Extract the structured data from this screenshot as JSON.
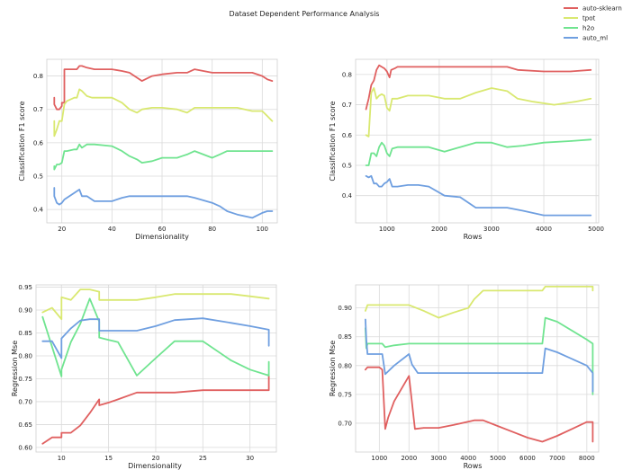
{
  "figure_title": "Dataset Dependent Performance Analysis",
  "legend": {
    "placement": "top-right",
    "entries": [
      {
        "name": "auto-sklearn",
        "color": "#e06060"
      },
      {
        "name": "tpot",
        "color": "#d9e870"
      },
      {
        "name": "h2o",
        "color": "#70e490"
      },
      {
        "name": "auto_ml",
        "color": "#6f9fe0"
      }
    ]
  },
  "chart_data": [
    {
      "type": "line",
      "xlabel": "Dimensionality",
      "ylabel": "Classification F1 score",
      "xlim": [
        14,
        106
      ],
      "ylim": [
        0.36,
        0.85
      ],
      "xticks": [
        20,
        40,
        60,
        80,
        100
      ],
      "yticks": [
        0.4,
        0.5,
        0.6,
        0.7,
        0.8
      ],
      "ytick_labels": [
        "0.4",
        "0.5",
        "0.6",
        "0.7",
        "0.8"
      ],
      "grid": true,
      "series": [
        {
          "name": "auto-sklearn",
          "color": "#e06060",
          "x": [
            17,
            17,
            18,
            19,
            20,
            20,
            21,
            21,
            26,
            27,
            28,
            30,
            33,
            40,
            44,
            47,
            52,
            56,
            60,
            66,
            68,
            70,
            73,
            80,
            83,
            86,
            90,
            96,
            100,
            102,
            104
          ],
          "y": [
            0.735,
            0.715,
            0.7,
            0.7,
            0.71,
            0.72,
            0.72,
            0.82,
            0.82,
            0.83,
            0.83,
            0.825,
            0.82,
            0.82,
            0.815,
            0.81,
            0.785,
            0.8,
            0.805,
            0.81,
            0.81,
            0.81,
            0.82,
            0.81,
            0.81,
            0.81,
            0.81,
            0.81,
            0.8,
            0.79,
            0.785
          ]
        },
        {
          "name": "tpot",
          "color": "#d9e870",
          "x": [
            17,
            17,
            18,
            19,
            20,
            21,
            22,
            25,
            26,
            27,
            28,
            30,
            32,
            40,
            44,
            47,
            50,
            52,
            56,
            60,
            66,
            68,
            70,
            73,
            80,
            83,
            86,
            90,
            96,
            100,
            102,
            104
          ],
          "y": [
            0.665,
            0.62,
            0.64,
            0.665,
            0.665,
            0.715,
            0.725,
            0.735,
            0.735,
            0.76,
            0.755,
            0.74,
            0.735,
            0.735,
            0.72,
            0.7,
            0.69,
            0.7,
            0.705,
            0.705,
            0.7,
            0.695,
            0.69,
            0.705,
            0.705,
            0.705,
            0.705,
            0.705,
            0.695,
            0.695,
            0.68,
            0.665
          ]
        },
        {
          "name": "h2o",
          "color": "#70e490",
          "x": [
            17,
            17,
            18,
            19,
            20,
            21,
            22,
            25,
            26,
            27,
            28,
            30,
            33,
            40,
            44,
            47,
            50,
            52,
            56,
            60,
            66,
            68,
            70,
            73,
            80,
            83,
            86,
            90,
            96,
            100,
            102,
            104
          ],
          "y": [
            0.53,
            0.52,
            0.535,
            0.535,
            0.54,
            0.575,
            0.575,
            0.58,
            0.58,
            0.595,
            0.585,
            0.595,
            0.595,
            0.59,
            0.575,
            0.56,
            0.55,
            0.54,
            0.545,
            0.555,
            0.555,
            0.56,
            0.565,
            0.575,
            0.555,
            0.565,
            0.575,
            0.575,
            0.575,
            0.575,
            0.575,
            0.575
          ]
        },
        {
          "name": "auto_ml",
          "color": "#6f9fe0",
          "x": [
            17,
            17,
            18,
            19,
            20,
            21,
            22,
            25,
            26,
            27,
            28,
            30,
            33,
            40,
            44,
            47,
            52,
            56,
            60,
            66,
            68,
            70,
            73,
            80,
            83,
            86,
            90,
            96,
            100,
            102,
            104
          ],
          "y": [
            0.465,
            0.44,
            0.42,
            0.415,
            0.42,
            0.43,
            0.435,
            0.45,
            0.455,
            0.46,
            0.44,
            0.44,
            0.425,
            0.425,
            0.435,
            0.44,
            0.44,
            0.44,
            0.44,
            0.44,
            0.44,
            0.44,
            0.435,
            0.42,
            0.41,
            0.395,
            0.385,
            0.375,
            0.39,
            0.395,
            0.395
          ]
        }
      ]
    },
    {
      "type": "line",
      "xlabel": "Rows",
      "ylabel": "Classification F1 score",
      "xlim": [
        400,
        5050
      ],
      "ylim": [
        0.31,
        0.85
      ],
      "xticks": [
        1000,
        2000,
        3000,
        4000,
        5000
      ],
      "yticks": [
        0.3,
        0.4,
        0.5,
        0.6,
        0.7,
        0.8
      ],
      "ytick_labels": [
        "0.3",
        "0.4",
        "0.5",
        "0.6",
        "0.7",
        "0.8"
      ],
      "grid": true,
      "series": [
        {
          "name": "auto-sklearn",
          "color": "#e06060",
          "x": [
            600,
            620,
            650,
            700,
            750,
            800,
            850,
            900,
            950,
            1000,
            1050,
            1080,
            1150,
            1200,
            1500,
            2000,
            2500,
            3000,
            3300,
            3500,
            4000,
            4200,
            4500,
            4900
          ],
          "y": [
            0.685,
            0.7,
            0.72,
            0.765,
            0.78,
            0.815,
            0.83,
            0.825,
            0.82,
            0.81,
            0.79,
            0.815,
            0.82,
            0.825,
            0.825,
            0.825,
            0.825,
            0.825,
            0.825,
            0.815,
            0.81,
            0.81,
            0.81,
            0.815
          ]
        },
        {
          "name": "tpot",
          "color": "#d9e870",
          "x": [
            600,
            650,
            700,
            750,
            800,
            850,
            900,
            950,
            1000,
            1050,
            1100,
            1200,
            1400,
            1600,
            1800,
            2100,
            2400,
            2700,
            3000,
            3300,
            3500,
            3800,
            4200,
            4600,
            4900
          ],
          "y": [
            0.6,
            0.595,
            0.74,
            0.755,
            0.72,
            0.73,
            0.735,
            0.73,
            0.69,
            0.68,
            0.72,
            0.72,
            0.73,
            0.73,
            0.73,
            0.72,
            0.72,
            0.74,
            0.755,
            0.745,
            0.72,
            0.71,
            0.7,
            0.71,
            0.72
          ]
        },
        {
          "name": "h2o",
          "color": "#70e490",
          "x": [
            600,
            650,
            700,
            750,
            800,
            850,
            900,
            950,
            1000,
            1050,
            1100,
            1200,
            1400,
            1600,
            1800,
            2100,
            2400,
            2700,
            3000,
            3300,
            3600,
            4000,
            4500,
            4900
          ],
          "y": [
            0.5,
            0.5,
            0.54,
            0.54,
            0.53,
            0.56,
            0.575,
            0.565,
            0.54,
            0.53,
            0.555,
            0.56,
            0.56,
            0.56,
            0.56,
            0.545,
            0.56,
            0.575,
            0.575,
            0.56,
            0.565,
            0.575,
            0.58,
            0.585
          ]
        },
        {
          "name": "auto_ml",
          "color": "#6f9fe0",
          "x": [
            600,
            650,
            700,
            750,
            800,
            850,
            900,
            950,
            1000,
            1050,
            1100,
            1200,
            1400,
            1600,
            1800,
            2100,
            2400,
            2700,
            3000,
            3300,
            3600,
            4000,
            4500,
            4900
          ],
          "y": [
            0.465,
            0.46,
            0.465,
            0.44,
            0.44,
            0.43,
            0.43,
            0.44,
            0.445,
            0.455,
            0.43,
            0.43,
            0.435,
            0.435,
            0.43,
            0.4,
            0.395,
            0.36,
            0.36,
            0.36,
            0.35,
            0.335,
            0.335,
            0.335
          ]
        }
      ]
    },
    {
      "type": "line",
      "xlabel": "Dimensionality",
      "ylabel": "Regression Mse",
      "xlim": [
        7.3,
        32.8
      ],
      "ylim": [
        0.59,
        0.955
      ],
      "xticks": [
        10,
        15,
        20,
        25,
        30
      ],
      "yticks": [
        0.6,
        0.65,
        0.7,
        0.75,
        0.8,
        0.85,
        0.9,
        0.95
      ],
      "ytick_labels": [
        "0.60",
        "0.65",
        "0.70",
        "0.75",
        "0.80",
        "0.85",
        "0.90",
        "0.95"
      ],
      "grid": true,
      "series": [
        {
          "name": "auto-sklearn",
          "color": "#e06060",
          "x": [
            8,
            9,
            10,
            10,
            11,
            12,
            13,
            14,
            14,
            15,
            16,
            18,
            20,
            22,
            25,
            28,
            30,
            32,
            32
          ],
          "y": [
            0.608,
            0.622,
            0.622,
            0.632,
            0.632,
            0.648,
            0.675,
            0.705,
            0.692,
            0.698,
            0.705,
            0.72,
            0.72,
            0.72,
            0.725,
            0.725,
            0.725,
            0.725,
            0.76
          ]
        },
        {
          "name": "tpot",
          "color": "#d9e870",
          "x": [
            8,
            9,
            10,
            10,
            11,
            12,
            13,
            14,
            14,
            15,
            16,
            18,
            20,
            22,
            25,
            28,
            30,
            32,
            32
          ],
          "y": [
            0.895,
            0.905,
            0.88,
            0.928,
            0.922,
            0.945,
            0.945,
            0.94,
            0.922,
            0.922,
            0.922,
            0.922,
            0.928,
            0.935,
            0.935,
            0.935,
            0.93,
            0.925,
            0.925
          ]
        },
        {
          "name": "h2o",
          "color": "#70e490",
          "x": [
            8,
            9,
            10,
            10,
            11,
            12,
            13,
            14,
            14,
            15,
            16,
            18,
            20,
            22,
            25,
            28,
            30,
            32,
            32
          ],
          "y": [
            0.885,
            0.82,
            0.755,
            0.77,
            0.83,
            0.87,
            0.925,
            0.875,
            0.84,
            0.835,
            0.83,
            0.757,
            0.795,
            0.832,
            0.832,
            0.79,
            0.77,
            0.757,
            0.787
          ]
        },
        {
          "name": "auto_ml",
          "color": "#6f9fe0",
          "x": [
            8,
            9,
            10,
            10,
            11,
            12,
            13,
            14,
            14,
            15,
            16,
            18,
            20,
            22,
            25,
            28,
            30,
            32,
            32
          ],
          "y": [
            0.832,
            0.832,
            0.795,
            0.838,
            0.86,
            0.877,
            0.88,
            0.88,
            0.855,
            0.855,
            0.855,
            0.855,
            0.865,
            0.878,
            0.882,
            0.872,
            0.865,
            0.857,
            0.822
          ]
        }
      ]
    },
    {
      "type": "line",
      "xlabel": "Rows",
      "ylabel": "Regression Mse",
      "xlim": [
        200,
        8400
      ],
      "ylim": [
        0.65,
        0.94
      ],
      "xticks": [
        1000,
        2000,
        3000,
        4000,
        5000,
        6000,
        7000,
        8000
      ],
      "yticks": [
        0.7,
        0.75,
        0.8,
        0.85,
        0.9
      ],
      "ytick_labels": [
        "0.70",
        "0.75",
        "0.80",
        "0.85",
        "0.90"
      ],
      "grid": true,
      "series": [
        {
          "name": "auto-sklearn",
          "color": "#e06060",
          "x": [
            530,
            600,
            700,
            1000,
            1100,
            1200,
            1300,
            1500,
            2000,
            2200,
            2500,
            3000,
            3500,
            4200,
            4500,
            5000,
            5500,
            6000,
            6500,
            7000,
            7500,
            8000,
            8200,
            8200
          ],
          "y": [
            0.793,
            0.797,
            0.797,
            0.797,
            0.793,
            0.69,
            0.71,
            0.738,
            0.782,
            0.69,
            0.692,
            0.692,
            0.697,
            0.705,
            0.705,
            0.695,
            0.685,
            0.675,
            0.668,
            0.678,
            0.69,
            0.702,
            0.702,
            0.668
          ]
        },
        {
          "name": "tpot",
          "color": "#d9e870",
          "x": [
            530,
            600,
            800,
            1200,
            2000,
            2500,
            3000,
            3500,
            4000,
            4200,
            4500,
            5000,
            6000,
            6500,
            6600,
            7000,
            8000,
            8200,
            8200
          ],
          "y": [
            0.895,
            0.905,
            0.905,
            0.905,
            0.905,
            0.895,
            0.883,
            0.892,
            0.9,
            0.915,
            0.93,
            0.93,
            0.93,
            0.93,
            0.937,
            0.937,
            0.937,
            0.937,
            0.93
          ]
        },
        {
          "name": "h2o",
          "color": "#70e490",
          "x": [
            530,
            560,
            600,
            800,
            1100,
            1200,
            1500,
            2000,
            2500,
            3000,
            4000,
            5000,
            6000,
            6500,
            6600,
            7000,
            8000,
            8200,
            8200
          ],
          "y": [
            0.865,
            0.83,
            0.838,
            0.838,
            0.838,
            0.832,
            0.835,
            0.838,
            0.838,
            0.838,
            0.838,
            0.838,
            0.838,
            0.838,
            0.883,
            0.876,
            0.845,
            0.838,
            0.75
          ]
        },
        {
          "name": "auto_ml",
          "color": "#6f9fe0",
          "x": [
            530,
            560,
            600,
            800,
            1100,
            1200,
            1500,
            2000,
            2100,
            2300,
            3000,
            4000,
            5000,
            6000,
            6500,
            6600,
            7000,
            8000,
            8200,
            8200
          ],
          "y": [
            0.88,
            0.845,
            0.82,
            0.82,
            0.82,
            0.785,
            0.8,
            0.82,
            0.802,
            0.787,
            0.787,
            0.787,
            0.787,
            0.787,
            0.787,
            0.83,
            0.823,
            0.8,
            0.787,
            0.755
          ]
        }
      ]
    }
  ]
}
